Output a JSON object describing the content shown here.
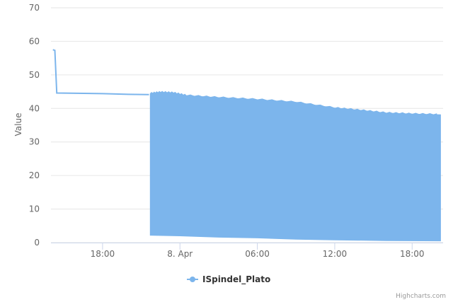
{
  "chart_data": {
    "type": "area",
    "title": "",
    "xlabel": "",
    "ylabel": "Value",
    "ylim": [
      0,
      70
    ],
    "y_ticks": [
      "0",
      "10",
      "20",
      "30",
      "40",
      "50",
      "60",
      "70"
    ],
    "x_ticks": [
      "18:00",
      "8. Apr",
      "06:00",
      "12:00",
      "18:00"
    ],
    "x_tick_hours": [
      18,
      24,
      30,
      36,
      42
    ],
    "x_range_hours": [
      14.0,
      44.4
    ],
    "grid": true,
    "legend_position": "bottom-center",
    "series": [
      {
        "name": "ISpindel_Plato",
        "color": "#7cb5ec",
        "points_before_oscillation": [
          [
            14.15,
            57.5
          ],
          [
            14.3,
            57.3
          ],
          [
            14.45,
            44.6
          ],
          [
            16.0,
            44.5
          ],
          [
            18.0,
            44.4
          ],
          [
            20.0,
            44.2
          ],
          [
            21.6,
            44.1
          ]
        ],
        "oscillation_start_hour": 21.7,
        "upper_envelope": [
          [
            21.7,
            44.4
          ],
          [
            22.5,
            44.8
          ],
          [
            23.5,
            44.6
          ],
          [
            24.5,
            43.8
          ],
          [
            27.0,
            43.2
          ],
          [
            30.0,
            42.6
          ],
          [
            33.0,
            41.8
          ],
          [
            36.0,
            40.1
          ],
          [
            38.0,
            39.4
          ],
          [
            40.0,
            38.6
          ],
          [
            42.0,
            38.3
          ],
          [
            44.2,
            38.1
          ]
        ],
        "lower_envelope": [
          [
            21.7,
            2.2
          ],
          [
            24.0,
            2.0
          ],
          [
            27.0,
            1.6
          ],
          [
            30.0,
            1.4
          ],
          [
            33.0,
            1.0
          ],
          [
            36.0,
            0.8
          ],
          [
            40.0,
            0.6
          ],
          [
            44.2,
            0.5
          ]
        ]
      }
    ]
  },
  "legend": {
    "label": "ISpindel_Plato"
  },
  "credits": {
    "label": "Highcharts.com"
  }
}
